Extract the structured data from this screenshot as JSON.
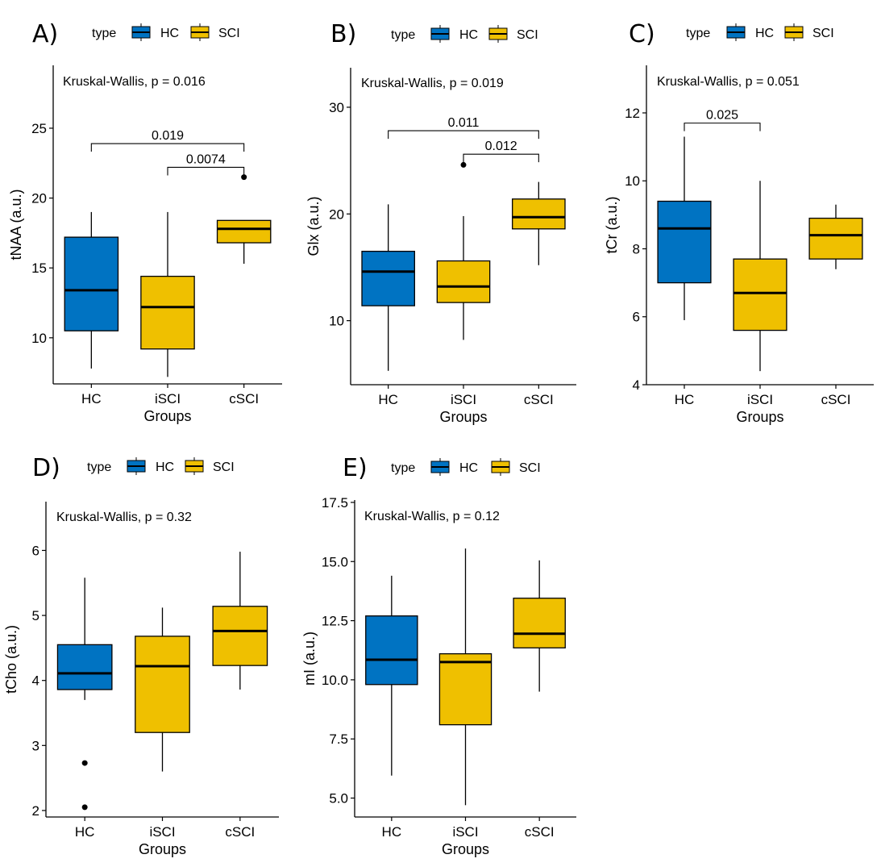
{
  "figure": {
    "legend_title": "type",
    "legend_items": [
      {
        "label": "HC",
        "color": "#0073c2"
      },
      {
        "label": "SCI",
        "color": "#efc000"
      }
    ]
  },
  "chart_data": [
    {
      "panel": "A)",
      "type": "box",
      "ylabel": "tNAA (a.u.)",
      "xlabel": "Groups",
      "categories": [
        "HC",
        "iSCI",
        "cSCI"
      ],
      "group_types": [
        "HC",
        "SCI",
        "SCI"
      ],
      "ylim": [
        6.7,
        29.5
      ],
      "yticks": [
        10,
        15,
        20,
        25
      ],
      "ytick_labels": [
        "10",
        "15",
        "20",
        "25"
      ],
      "test_label": "Kruskal-Wallis, p = 0.016",
      "boxes": [
        {
          "lower_whisker": 7.8,
          "q1": 10.5,
          "median": 13.4,
          "q3": 17.2,
          "upper_whisker": 19.0,
          "outliers": []
        },
        {
          "lower_whisker": 7.2,
          "q1": 9.2,
          "median": 12.2,
          "q3": 14.4,
          "upper_whisker": 19.0,
          "outliers": []
        },
        {
          "lower_whisker": 15.3,
          "q1": 16.8,
          "median": 17.8,
          "q3": 18.4,
          "upper_whisker": 18.4,
          "outliers": [
            21.5
          ]
        }
      ],
      "comparisons": [
        {
          "from": 0,
          "to": 2,
          "label": "0.019",
          "y": 23.9
        },
        {
          "from": 1,
          "to": 2,
          "label": "0.0074",
          "y": 22.2
        }
      ]
    },
    {
      "panel": "B)",
      "type": "box",
      "ylabel": "Glx (a.u.)",
      "xlabel": "Groups",
      "categories": [
        "HC",
        "iSCI",
        "cSCI"
      ],
      "group_types": [
        "HC",
        "SCI",
        "SCI"
      ],
      "ylim": [
        4.0,
        33.7
      ],
      "yticks": [
        10,
        20,
        30
      ],
      "ytick_labels": [
        "10",
        "20",
        "30"
      ],
      "test_label": "Kruskal-Wallis, p = 0.019",
      "boxes": [
        {
          "lower_whisker": 5.3,
          "q1": 11.4,
          "median": 14.6,
          "q3": 16.5,
          "upper_whisker": 20.9,
          "outliers": []
        },
        {
          "lower_whisker": 8.2,
          "q1": 11.7,
          "median": 13.2,
          "q3": 15.6,
          "upper_whisker": 19.8,
          "outliers": [
            24.6
          ]
        },
        {
          "lower_whisker": 15.2,
          "q1": 18.6,
          "median": 19.7,
          "q3": 21.4,
          "upper_whisker": 23.0,
          "outliers": []
        }
      ],
      "comparisons": [
        {
          "from": 0,
          "to": 2,
          "label": "0.011",
          "y": 27.8
        },
        {
          "from": 1,
          "to": 2,
          "label": "0.012",
          "y": 25.6
        }
      ]
    },
    {
      "panel": "C)",
      "type": "box",
      "ylabel": "tCr (a.u.)",
      "xlabel": "Groups",
      "categories": [
        "HC",
        "iSCI",
        "cSCI"
      ],
      "group_types": [
        "HC",
        "SCI",
        "SCI"
      ],
      "ylim": [
        4.0,
        13.4
      ],
      "yticks": [
        4,
        6,
        8,
        10,
        12
      ],
      "ytick_labels": [
        "4",
        "6",
        "8",
        "10",
        "12"
      ],
      "test_label": "Kruskal-Wallis, p = 0.051",
      "boxes": [
        {
          "lower_whisker": 5.9,
          "q1": 7.0,
          "median": 8.6,
          "q3": 9.4,
          "upper_whisker": 11.3,
          "outliers": []
        },
        {
          "lower_whisker": 4.4,
          "q1": 5.6,
          "median": 6.7,
          "q3": 7.7,
          "upper_whisker": 10.0,
          "outliers": []
        },
        {
          "lower_whisker": 7.4,
          "q1": 7.7,
          "median": 8.4,
          "q3": 8.9,
          "upper_whisker": 9.3,
          "outliers": []
        }
      ],
      "comparisons": [
        {
          "from": 0,
          "to": 1,
          "label": "0.025",
          "y": 11.7
        }
      ]
    },
    {
      "panel": "D)",
      "type": "box",
      "ylabel": "tCho (a.u.)",
      "xlabel": "Groups",
      "categories": [
        "HC",
        "iSCI",
        "cSCI"
      ],
      "group_types": [
        "HC",
        "SCI",
        "SCI"
      ],
      "ylim": [
        1.9,
        6.75
      ],
      "yticks": [
        2,
        3,
        4,
        5,
        6
      ],
      "ytick_labels": [
        "2",
        "3",
        "4",
        "5",
        "6"
      ],
      "test_label": "Kruskal-Wallis, p = 0.32",
      "boxes": [
        {
          "lower_whisker": 3.7,
          "q1": 3.86,
          "median": 4.11,
          "q3": 4.55,
          "upper_whisker": 5.58,
          "outliers": [
            2.73,
            2.05
          ]
        },
        {
          "lower_whisker": 2.6,
          "q1": 3.2,
          "median": 4.22,
          "q3": 4.68,
          "upper_whisker": 5.12,
          "outliers": []
        },
        {
          "lower_whisker": 3.86,
          "q1": 4.23,
          "median": 4.76,
          "q3": 5.14,
          "upper_whisker": 5.98,
          "outliers": []
        }
      ],
      "comparisons": []
    },
    {
      "panel": "E)",
      "type": "box",
      "ylabel": "mI (a.u.)",
      "xlabel": "Groups",
      "categories": [
        "HC",
        "iSCI",
        "cSCI"
      ],
      "group_types": [
        "HC",
        "SCI",
        "SCI"
      ],
      "ylim": [
        4.2,
        17.6
      ],
      "yticks": [
        5.0,
        7.5,
        10.0,
        12.5,
        15.0,
        17.5
      ],
      "ytick_labels": [
        "5.0",
        "7.5",
        "10.0",
        "12.5",
        "15.0",
        "17.5"
      ],
      "test_label": "Kruskal-Wallis, p = 0.12",
      "boxes": [
        {
          "lower_whisker": 5.95,
          "q1": 9.8,
          "median": 10.85,
          "q3": 12.7,
          "upper_whisker": 14.4,
          "outliers": []
        },
        {
          "lower_whisker": 4.7,
          "q1": 8.1,
          "median": 10.75,
          "q3": 11.1,
          "upper_whisker": 15.55,
          "outliers": []
        },
        {
          "lower_whisker": 9.5,
          "q1": 11.35,
          "median": 11.95,
          "q3": 13.45,
          "upper_whisker": 15.05,
          "outliers": []
        }
      ],
      "comparisons": []
    }
  ]
}
